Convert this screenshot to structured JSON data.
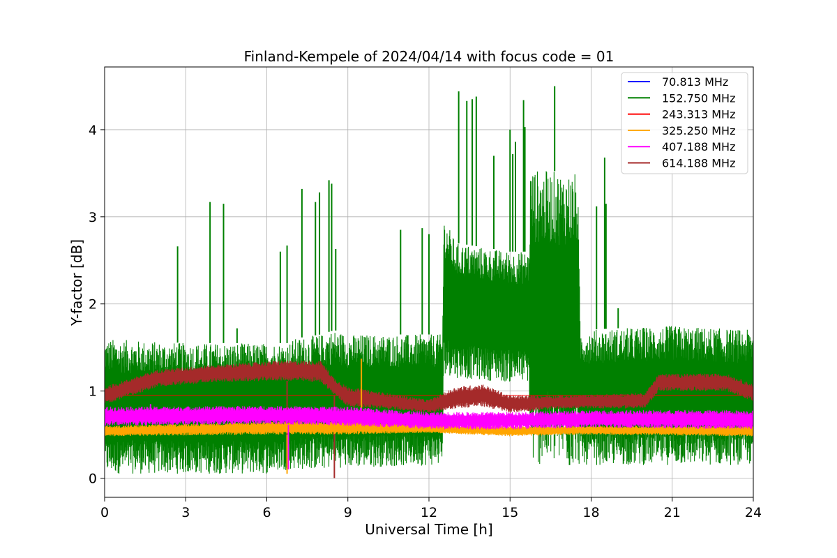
{
  "chart_data": {
    "type": "line",
    "title": "Finland-Kempele of 2024/04/14 with focus code = 01",
    "xlabel": "Universal Time [h]",
    "ylabel": "Y-factor [dB]",
    "xlim": [
      0,
      24
    ],
    "ylim": [
      -0.22,
      4.72
    ],
    "xticks": [
      0,
      3,
      6,
      9,
      12,
      15,
      18,
      21,
      24
    ],
    "yticks": [
      0,
      1,
      2,
      3,
      4
    ],
    "grid": true,
    "legend_position": "top-right",
    "series": [
      {
        "name": " 70.813 MHz",
        "color": "#0000ff",
        "points": [
          [
            0,
            0.55
          ],
          [
            24,
            0.55
          ]
        ]
      },
      {
        "name": "152.750 MHz",
        "color": "#008000",
        "band": [
          [
            0,
            0.05,
            1.6
          ],
          [
            3,
            0.05,
            1.55
          ],
          [
            6,
            0.05,
            1.55
          ],
          [
            6.8,
            0.1,
            1.55
          ],
          [
            7.0,
            0.1,
            1.6
          ],
          [
            8.0,
            0.1,
            1.65
          ],
          [
            8.5,
            0.12,
            1.7
          ],
          [
            9,
            0.12,
            1.65
          ],
          [
            12.5,
            0.15,
            1.65
          ],
          [
            12.55,
            1.2,
            3.0
          ],
          [
            13.0,
            1.15,
            2.7
          ],
          [
            15.0,
            1.1,
            2.6
          ],
          [
            15.7,
            1.1,
            2.6
          ],
          [
            15.75,
            0.15,
            3.55
          ],
          [
            17.5,
            0.15,
            3.5
          ],
          [
            17.6,
            0.15,
            1.7
          ],
          [
            21,
            0.15,
            1.75
          ],
          [
            24,
            0.15,
            1.7
          ]
        ],
        "spikes": [
          [
            2.7,
            2.66
          ],
          [
            3.9,
            3.17
          ],
          [
            4.4,
            3.15
          ],
          [
            4.9,
            1.72
          ],
          [
            6.5,
            2.6
          ],
          [
            6.75,
            2.67
          ],
          [
            7.3,
            3.32
          ],
          [
            7.8,
            3.17
          ],
          [
            7.95,
            3.28
          ],
          [
            8.3,
            3.42
          ],
          [
            8.4,
            3.38
          ],
          [
            8.55,
            2.63
          ],
          [
            10.95,
            2.85
          ],
          [
            11.75,
            2.87
          ],
          [
            12.0,
            2.8
          ],
          [
            13.1,
            4.44
          ],
          [
            13.4,
            4.33
          ],
          [
            13.6,
            4.35
          ],
          [
            13.75,
            4.38
          ],
          [
            14.4,
            3.7
          ],
          [
            15.0,
            4.0
          ],
          [
            15.1,
            3.72
          ],
          [
            15.2,
            3.86
          ],
          [
            15.5,
            4.34
          ],
          [
            15.55,
            4.03
          ],
          [
            16.65,
            4.5
          ],
          [
            17.2,
            2.82
          ],
          [
            18.2,
            3.12
          ],
          [
            18.5,
            3.68
          ],
          [
            18.55,
            3.15
          ],
          [
            19.0,
            1.95
          ]
        ]
      },
      {
        "name": "243.313 MHz",
        "color": "#ff0000",
        "points": [
          [
            0,
            0.95
          ],
          [
            24,
            0.95
          ]
        ]
      },
      {
        "name": "325.250 MHz",
        "color": "#ffa500",
        "band": [
          [
            0,
            0.48,
            0.6
          ],
          [
            6,
            0.5,
            0.65
          ],
          [
            9,
            0.5,
            0.66
          ],
          [
            12,
            0.52,
            0.62
          ],
          [
            15,
            0.48,
            0.6
          ],
          [
            18,
            0.5,
            0.6
          ],
          [
            24,
            0.48,
            0.6
          ]
        ],
        "spikes": [
          [
            9.5,
            1.37
          ],
          [
            6.75,
            0.05
          ]
        ]
      },
      {
        "name": "407.188 MHz",
        "color": "#ff00ff",
        "band": [
          [
            0,
            0.6,
            0.82
          ],
          [
            6,
            0.62,
            0.83
          ],
          [
            9,
            0.6,
            0.82
          ],
          [
            12,
            0.56,
            0.76
          ],
          [
            15,
            0.56,
            0.76
          ],
          [
            18,
            0.58,
            0.78
          ],
          [
            24,
            0.56,
            0.78
          ]
        ],
        "spikes": [
          [
            1.7,
            0.85
          ],
          [
            6.8,
            0.1
          ]
        ]
      },
      {
        "name": "614.188 MHz",
        "color": "#a52a2a",
        "band": [
          [
            0,
            0.85,
            1.05
          ],
          [
            2,
            1.05,
            1.25
          ],
          [
            4,
            1.1,
            1.3
          ],
          [
            6.5,
            1.12,
            1.35
          ],
          [
            8.0,
            1.1,
            1.35
          ],
          [
            8.5,
            0.95,
            1.15
          ],
          [
            9,
            0.82,
            1.05
          ],
          [
            11,
            0.78,
            0.95
          ],
          [
            12,
            0.75,
            0.9
          ],
          [
            13,
            0.8,
            1.05
          ],
          [
            14,
            0.82,
            1.08
          ],
          [
            15,
            0.75,
            0.95
          ],
          [
            17,
            0.8,
            0.95
          ],
          [
            20,
            0.8,
            0.98
          ],
          [
            20.5,
            1.0,
            1.2
          ],
          [
            23,
            1.0,
            1.2
          ],
          [
            24,
            0.88,
            1.08
          ]
        ],
        "spikes": [
          [
            6.75,
            0.1
          ],
          [
            8.5,
            0.0
          ]
        ]
      }
    ]
  }
}
